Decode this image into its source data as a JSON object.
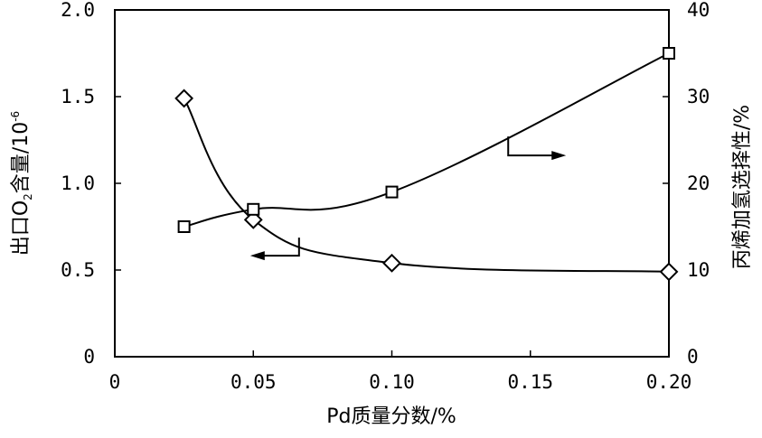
{
  "chart_data": {
    "type": "line",
    "xlabel": "Pd质量分数/%",
    "ylabel_left": {
      "prefix": "出口O",
      "sub": "2",
      "mid": "含量/10",
      "sup": "-6"
    },
    "ylabel_right": "丙烯加氢选择性/%",
    "xlim": [
      0,
      0.2
    ],
    "ylim_left": [
      0,
      2.0
    ],
    "ylim_right": [
      0,
      40
    ],
    "x_ticks": [
      "0",
      "0.05",
      "0.10",
      "0.15",
      "0.20"
    ],
    "x_tick_values": [
      0,
      0.05,
      0.1,
      0.15,
      0.2
    ],
    "y_left_ticks": [
      "0",
      "0.5",
      "1.0",
      "1.5",
      "2.0"
    ],
    "y_left_tick_values": [
      0,
      0.5,
      1.0,
      1.5,
      2.0
    ],
    "y_right_ticks": [
      "0",
      "10",
      "20",
      "30",
      "40"
    ],
    "y_right_tick_values": [
      0,
      10,
      20,
      30,
      40
    ],
    "grid": false,
    "series": [
      {
        "axis": "left",
        "marker": "diamond",
        "x": [
          0.025,
          0.05,
          0.1,
          0.2
        ],
        "y": [
          1.49,
          0.79,
          0.54,
          0.49
        ]
      },
      {
        "axis": "right",
        "marker": "square",
        "x": [
          0.025,
          0.05,
          0.1,
          0.2
        ],
        "y": [
          15.0,
          17.0,
          19.0,
          35.0
        ]
      }
    ],
    "annotations": [
      {
        "direction": "left",
        "series": 0
      },
      {
        "direction": "right",
        "series": 1
      }
    ]
  }
}
